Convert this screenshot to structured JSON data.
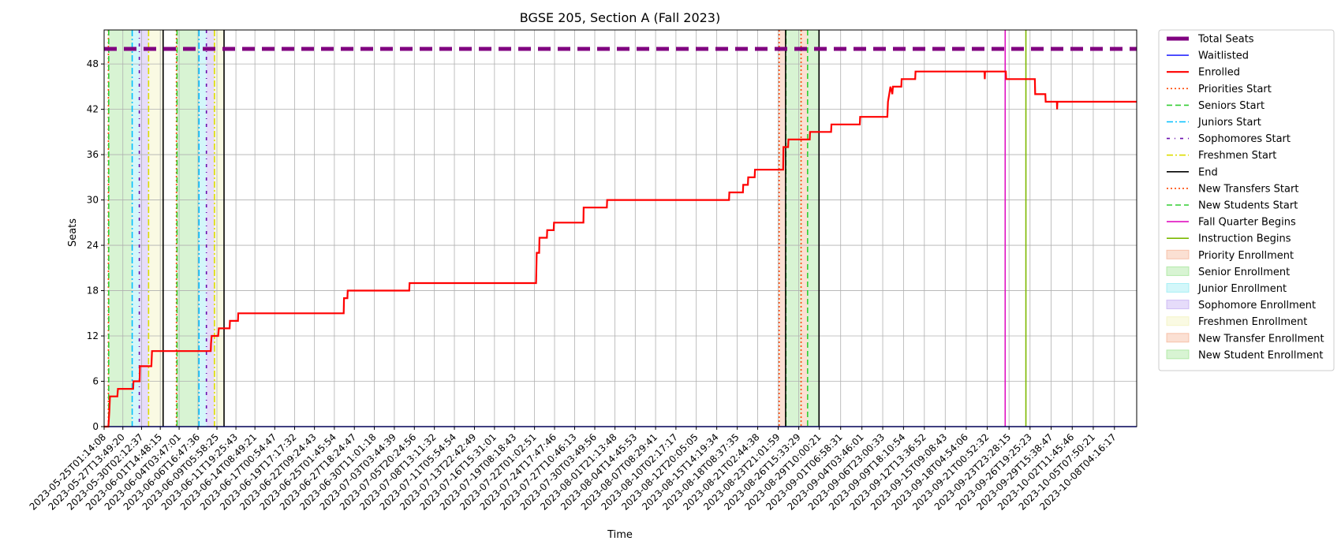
{
  "chart_data": {
    "type": "line",
    "title": "BGSE 205, Section A (Fall 2023)",
    "xlabel": "Time",
    "ylabel": "Seats",
    "ylim": [
      0,
      52.5
    ],
    "xlim": [
      "2023-05-25T01:14:08",
      "2023-10-11T04:16:17"
    ],
    "grid": true,
    "legend_position": "outside-right",
    "yticks": [
      0,
      6,
      12,
      18,
      24,
      30,
      36,
      42,
      48
    ],
    "xtick_labels": [
      "2023-05-25T01:14:08",
      "2023-05-27T13:49:20",
      "2023-05-30T02:12:37",
      "2023-06-01T14:48:15",
      "2023-06-04T03:47:01",
      "2023-06-06T16:47:36",
      "2023-06-09T05:58:25",
      "2023-06-11T19:25:43",
      "2023-06-14T08:49:21",
      "2023-06-17T00:54:47",
      "2023-06-19T17:17:32",
      "2023-06-22T09:24:43",
      "2023-06-25T01:45:54",
      "2023-06-27T18:24:47",
      "2023-06-30T11:01:18",
      "2023-07-03T03:44:39",
      "2023-07-05T20:24:56",
      "2023-07-08T13:11:32",
      "2023-07-11T05:54:54",
      "2023-07-13T22:42:49",
      "2023-07-16T15:31:01",
      "2023-07-19T08:18:43",
      "2023-07-22T01:02:51",
      "2023-07-24T17:47:46",
      "2023-07-27T10:46:13",
      "2023-07-30T03:49:56",
      "2023-08-01T21:13:48",
      "2023-08-04T14:45:53",
      "2023-08-07T08:29:41",
      "2023-08-10T02:17:17",
      "2023-08-12T20:05:05",
      "2023-08-15T14:19:34",
      "2023-08-18T08:37:35",
      "2023-08-21T02:44:38",
      "2023-08-23T21:01:59",
      "2023-08-26T15:33:29",
      "2023-08-29T10:00:21",
      "2023-09-01T06:58:31",
      "2023-09-04T03:46:01",
      "2023-09-06T23:00:33",
      "2023-09-09T18:10:54",
      "2023-09-12T13:36:52",
      "2023-09-15T09:08:43",
      "2023-09-18T04:54:06",
      "2023-09-21T00:52:32",
      "2023-09-23T23:28:15",
      "2023-09-26T19:25:23",
      "2023-09-29T15:38:47",
      "2023-10-02T11:45:46",
      "2023-10-05T07:50:21",
      "2023-10-08T04:16:17"
    ],
    "series": [
      {
        "name": "Total Seats",
        "color": "#800080",
        "style": "dashed",
        "points": [
          [
            "2023-05-25T01:14:08",
            50
          ],
          [
            "2023-10-11T04:16:17",
            50
          ]
        ]
      },
      {
        "name": "Waitlisted",
        "color": "#0000ff",
        "style": "solid",
        "points": [
          [
            "2023-05-25T01:14:08",
            0
          ],
          [
            "2023-10-11T04:16:17",
            0
          ]
        ]
      },
      {
        "name": "Enrolled",
        "color": "#ff0000",
        "style": "solid",
        "points": [
          [
            "2023-05-25T01:14:08",
            0
          ],
          [
            "2023-05-25T15:00:00",
            0
          ],
          [
            "2023-05-25T18:00:00",
            2
          ],
          [
            "2023-05-25T20:00:00",
            4
          ],
          [
            "2023-05-26T20:00:00",
            4
          ],
          [
            "2023-05-26T22:00:00",
            5
          ],
          [
            "2023-05-28T23:00:00",
            5
          ],
          [
            "2023-05-29T00:00:00",
            6
          ],
          [
            "2023-05-29T20:00:00",
            6
          ],
          [
            "2023-05-29T21:00:00",
            8
          ],
          [
            "2023-05-31T10:00:00",
            8
          ],
          [
            "2023-05-31T12:00:00",
            10
          ],
          [
            "2023-06-08T10:00:00",
            10
          ],
          [
            "2023-06-08T11:00:00",
            11
          ],
          [
            "2023-06-08T13:00:00",
            12
          ],
          [
            "2023-06-09T10:00:00",
            12
          ],
          [
            "2023-06-09T12:00:00",
            13
          ],
          [
            "2023-06-10T23:00:00",
            13
          ],
          [
            "2023-06-11T00:00:00",
            14
          ],
          [
            "2023-06-12T02:00:00",
            14
          ],
          [
            "2023-06-12T03:00:00",
            15
          ],
          [
            "2023-06-26T08:00:00",
            15
          ],
          [
            "2023-06-26T09:00:00",
            17
          ],
          [
            "2023-06-26T20:00:00",
            17
          ],
          [
            "2023-06-26T21:00:00",
            18
          ],
          [
            "2023-07-05T04:00:00",
            18
          ],
          [
            "2023-07-05T05:00:00",
            19
          ],
          [
            "2023-07-22T06:00:00",
            19
          ],
          [
            "2023-07-22T08:00:00",
            23
          ],
          [
            "2023-07-22T16:00:00",
            23
          ],
          [
            "2023-07-22T17:00:00",
            25
          ],
          [
            "2023-07-23T17:00:00",
            25
          ],
          [
            "2023-07-23T18:00:00",
            26
          ],
          [
            "2023-07-24T15:00:00",
            26
          ],
          [
            "2023-07-24T16:00:00",
            27
          ],
          [
            "2023-07-28T15:00:00",
            27
          ],
          [
            "2023-07-28T16:00:00",
            29
          ],
          [
            "2023-07-31T19:00:00",
            29
          ],
          [
            "2023-07-31T20:00:00",
            30
          ],
          [
            "2023-08-17T06:00:00",
            30
          ],
          [
            "2023-08-17T07:00:00",
            31
          ],
          [
            "2023-08-19T03:00:00",
            31
          ],
          [
            "2023-08-19T04:00:00",
            32
          ],
          [
            "2023-08-19T19:00:00",
            32
          ],
          [
            "2023-08-19T20:00:00",
            33
          ],
          [
            "2023-08-20T17:00:00",
            33
          ],
          [
            "2023-08-20T18:00:00",
            34
          ],
          [
            "2023-08-24T13:00:00",
            34
          ],
          [
            "2023-08-24T14:00:00",
            37
          ],
          [
            "2023-08-25T05:00:00",
            37
          ],
          [
            "2023-08-25T06:00:00",
            38
          ],
          [
            "2023-08-28T03:00:00",
            38
          ],
          [
            "2023-08-28T04:00:00",
            39
          ],
          [
            "2023-08-31T00:00:00",
            39
          ],
          [
            "2023-08-31T01:00:00",
            40
          ],
          [
            "2023-09-03T21:00:00",
            40
          ],
          [
            "2023-09-03T22:00:00",
            41
          ],
          [
            "2023-09-07T14:00:00",
            41
          ],
          [
            "2023-09-07T16:00:00",
            43
          ],
          [
            "2023-09-07T20:00:00",
            44
          ],
          [
            "2023-09-08T00:00:00",
            45
          ],
          [
            "2023-09-08T06:00:00",
            44
          ],
          [
            "2023-09-08T08:00:00",
            45
          ],
          [
            "2023-09-09T11:00:00",
            45
          ],
          [
            "2023-09-09T12:00:00",
            46
          ],
          [
            "2023-09-11T08:00:00",
            46
          ],
          [
            "2023-09-11T09:00:00",
            47
          ],
          [
            "2023-09-20T16:00:00",
            47
          ],
          [
            "2023-09-20T17:00:00",
            46
          ],
          [
            "2023-09-20T18:00:00",
            47
          ],
          [
            "2023-09-23T13:00:00",
            47
          ],
          [
            "2023-09-23T14:00:00",
            46
          ],
          [
            "2023-09-27T11:00:00",
            46
          ],
          [
            "2023-09-27T12:00:00",
            44
          ],
          [
            "2023-09-28T21:00:00",
            44
          ],
          [
            "2023-09-28T22:00:00",
            43
          ],
          [
            "2023-09-30T10:00:00",
            43
          ],
          [
            "2023-09-30T11:00:00",
            42
          ],
          [
            "2023-09-30T12:00:00",
            43
          ],
          [
            "2023-10-11T04:16:17",
            43
          ]
        ]
      }
    ],
    "vlines": [
      {
        "name": "Priorities Start",
        "color": "#ff4500",
        "style": "dotted",
        "dates": [
          "2023-05-25T15:00:00",
          "2023-06-03T19:00:00",
          "2023-08-24T00:00:00",
          "2023-08-26T23:00:00"
        ]
      },
      {
        "name": "Seniors Start",
        "color": "#32cd32",
        "style": "dashed",
        "dates": [
          "2023-05-25T16:00:00",
          "2023-06-03T21:00:00",
          "2023-08-24T22:00:00",
          "2023-08-27T20:00:00"
        ]
      },
      {
        "name": "Juniors Start",
        "color": "#00bfff",
        "style": "dashdot",
        "dates": [
          "2023-05-28T20:00:00",
          "2023-06-06T20:00:00"
        ]
      },
      {
        "name": "Sophomores Start",
        "color": "#6a0dad",
        "style": "dashdot2",
        "dates": [
          "2023-05-29T19:00:00",
          "2023-06-07T20:00:00"
        ]
      },
      {
        "name": "Freshmen Start",
        "color": "#dddd00",
        "style": "dashdot",
        "dates": [
          "2023-05-31T01:00:00",
          "2023-06-08T22:00:00"
        ]
      },
      {
        "name": "End",
        "color": "#000000",
        "style": "solid",
        "dates": [
          "2023-06-02T00:00:00",
          "2023-06-10T05:00:00",
          "2023-08-24T21:00:00",
          "2023-08-29T09:00:00"
        ]
      },
      {
        "name": "New Transfers Start",
        "color": "#ff4500",
        "style": "dotted",
        "dates": []
      },
      {
        "name": "New Students Start",
        "color": "#32cd32",
        "style": "dashed",
        "dates": []
      },
      {
        "name": "Fall Quarter Begins",
        "color": "#e010c0",
        "style": "solid",
        "dates": [
          "2023-09-23T11:00:00"
        ]
      },
      {
        "name": "Instruction Begins",
        "color": "#7cb800",
        "style": "solid",
        "dates": [
          "2023-09-26T06:00:00"
        ]
      }
    ],
    "spans": [
      {
        "name": "Priority Enrollment",
        "color": "#f4a582",
        "ranges": [
          [
            "2023-05-25T15:00:00",
            "2023-05-25T16:00:00"
          ],
          [
            "2023-06-03T19:00:00",
            "2023-06-03T21:00:00"
          ]
        ]
      },
      {
        "name": "Senior Enrollment",
        "color": "#90e080",
        "ranges": [
          [
            "2023-05-25T16:00:00",
            "2023-05-28T20:00:00"
          ],
          [
            "2023-06-03T21:00:00",
            "2023-06-06T20:00:00"
          ]
        ]
      },
      {
        "name": "Junior Enrollment",
        "color": "#80e8f0",
        "ranges": [
          [
            "2023-05-28T20:00:00",
            "2023-05-29T19:00:00"
          ],
          [
            "2023-06-06T20:00:00",
            "2023-06-07T20:00:00"
          ]
        ]
      },
      {
        "name": "Sophomore Enrollment",
        "color": "#b79cf0",
        "ranges": [
          [
            "2023-05-29T19:00:00",
            "2023-05-31T01:00:00"
          ],
          [
            "2023-06-07T20:00:00",
            "2023-06-08T22:00:00"
          ]
        ]
      },
      {
        "name": "Freshmen Enrollment",
        "color": "#f0f0b0",
        "ranges": [
          [
            "2023-05-31T01:00:00",
            "2023-06-02T00:00:00"
          ],
          [
            "2023-06-08T22:00:00",
            "2023-06-10T05:00:00"
          ]
        ]
      },
      {
        "name": "New Transfer Enrollment",
        "color": "#f4a582",
        "ranges": [
          [
            "2023-08-24T00:00:00",
            "2023-08-24T21:00:00"
          ],
          [
            "2023-08-26T23:00:00",
            "2023-08-27T20:00:00"
          ]
        ]
      },
      {
        "name": "New Student Enrollment",
        "color": "#90e080",
        "ranges": [
          [
            "2023-08-24T22:00:00",
            "2023-08-26T23:00:00"
          ],
          [
            "2023-08-27T20:00:00",
            "2023-08-29T09:00:00"
          ]
        ]
      }
    ]
  }
}
